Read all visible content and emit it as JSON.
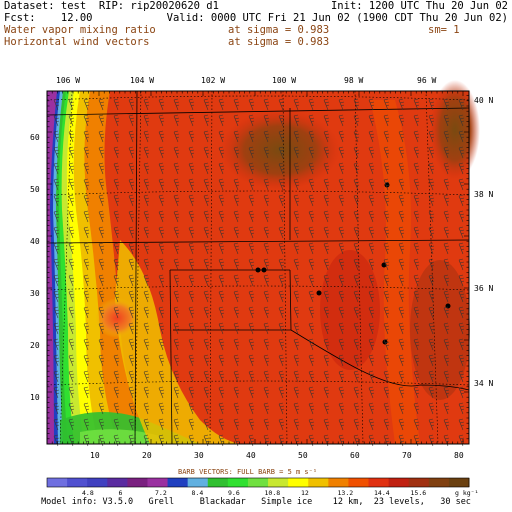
{
  "header": {
    "line1_left": "Dataset: test  RIP: rip20020620 d1",
    "line1_right": "Init: 1200 UTC Thu 20 Jun 02",
    "line2_left": "Fcst:    12.00",
    "line2_right": "Valid: 0000 UTC Fri 21 Jun 02 (1900 CDT Thu 20 Jun 02)",
    "field1": "Water vapor mixing ratio",
    "field1_level": "at sigma = 0.983",
    "field1_smooth": "sm= 1",
    "field2": "Horizontal wind vectors",
    "field2_level": "at sigma = 0.983"
  },
  "map": {
    "lon_labels": [
      "106 W",
      "104 W",
      "102 W",
      "100 W",
      "98 W",
      "96 W"
    ],
    "lat_labels": [
      "40 N",
      "38 N",
      "36 N",
      "34 N"
    ],
    "x_ticks": [
      "10",
      "20",
      "30",
      "40",
      "50",
      "60",
      "70",
      "80"
    ],
    "y_ticks": [
      "10",
      "20",
      "30",
      "40",
      "50",
      "60"
    ]
  },
  "colorbar": {
    "barb_note": "BARB VECTORS:  FULL BARB = 5 m s⁻¹",
    "labels": [
      "4.8",
      "6",
      "7.2",
      "8.4",
      "9.6",
      "10.8",
      "12",
      "13.2",
      "14.4",
      "15.6",
      "g kg⁻¹"
    ],
    "colors": [
      "#6f6fe0",
      "#5050d0",
      "#4040c0",
      "#5a2ba0",
      "#7a2080",
      "#9a30a0",
      "#2040c0",
      "#60b0e0",
      "#30c030",
      "#30e030",
      "#70e040",
      "#c8e830",
      "#ffff00",
      "#f0c000",
      "#f08000",
      "#f05000",
      "#e03010",
      "#c02010",
      "#a03010",
      "#804010",
      "#6a4010"
    ]
  },
  "footer": "Model info: V3.5.0   Grell     Blackadar   Simple ice    12 km,  23 levels,   30 sec"
}
